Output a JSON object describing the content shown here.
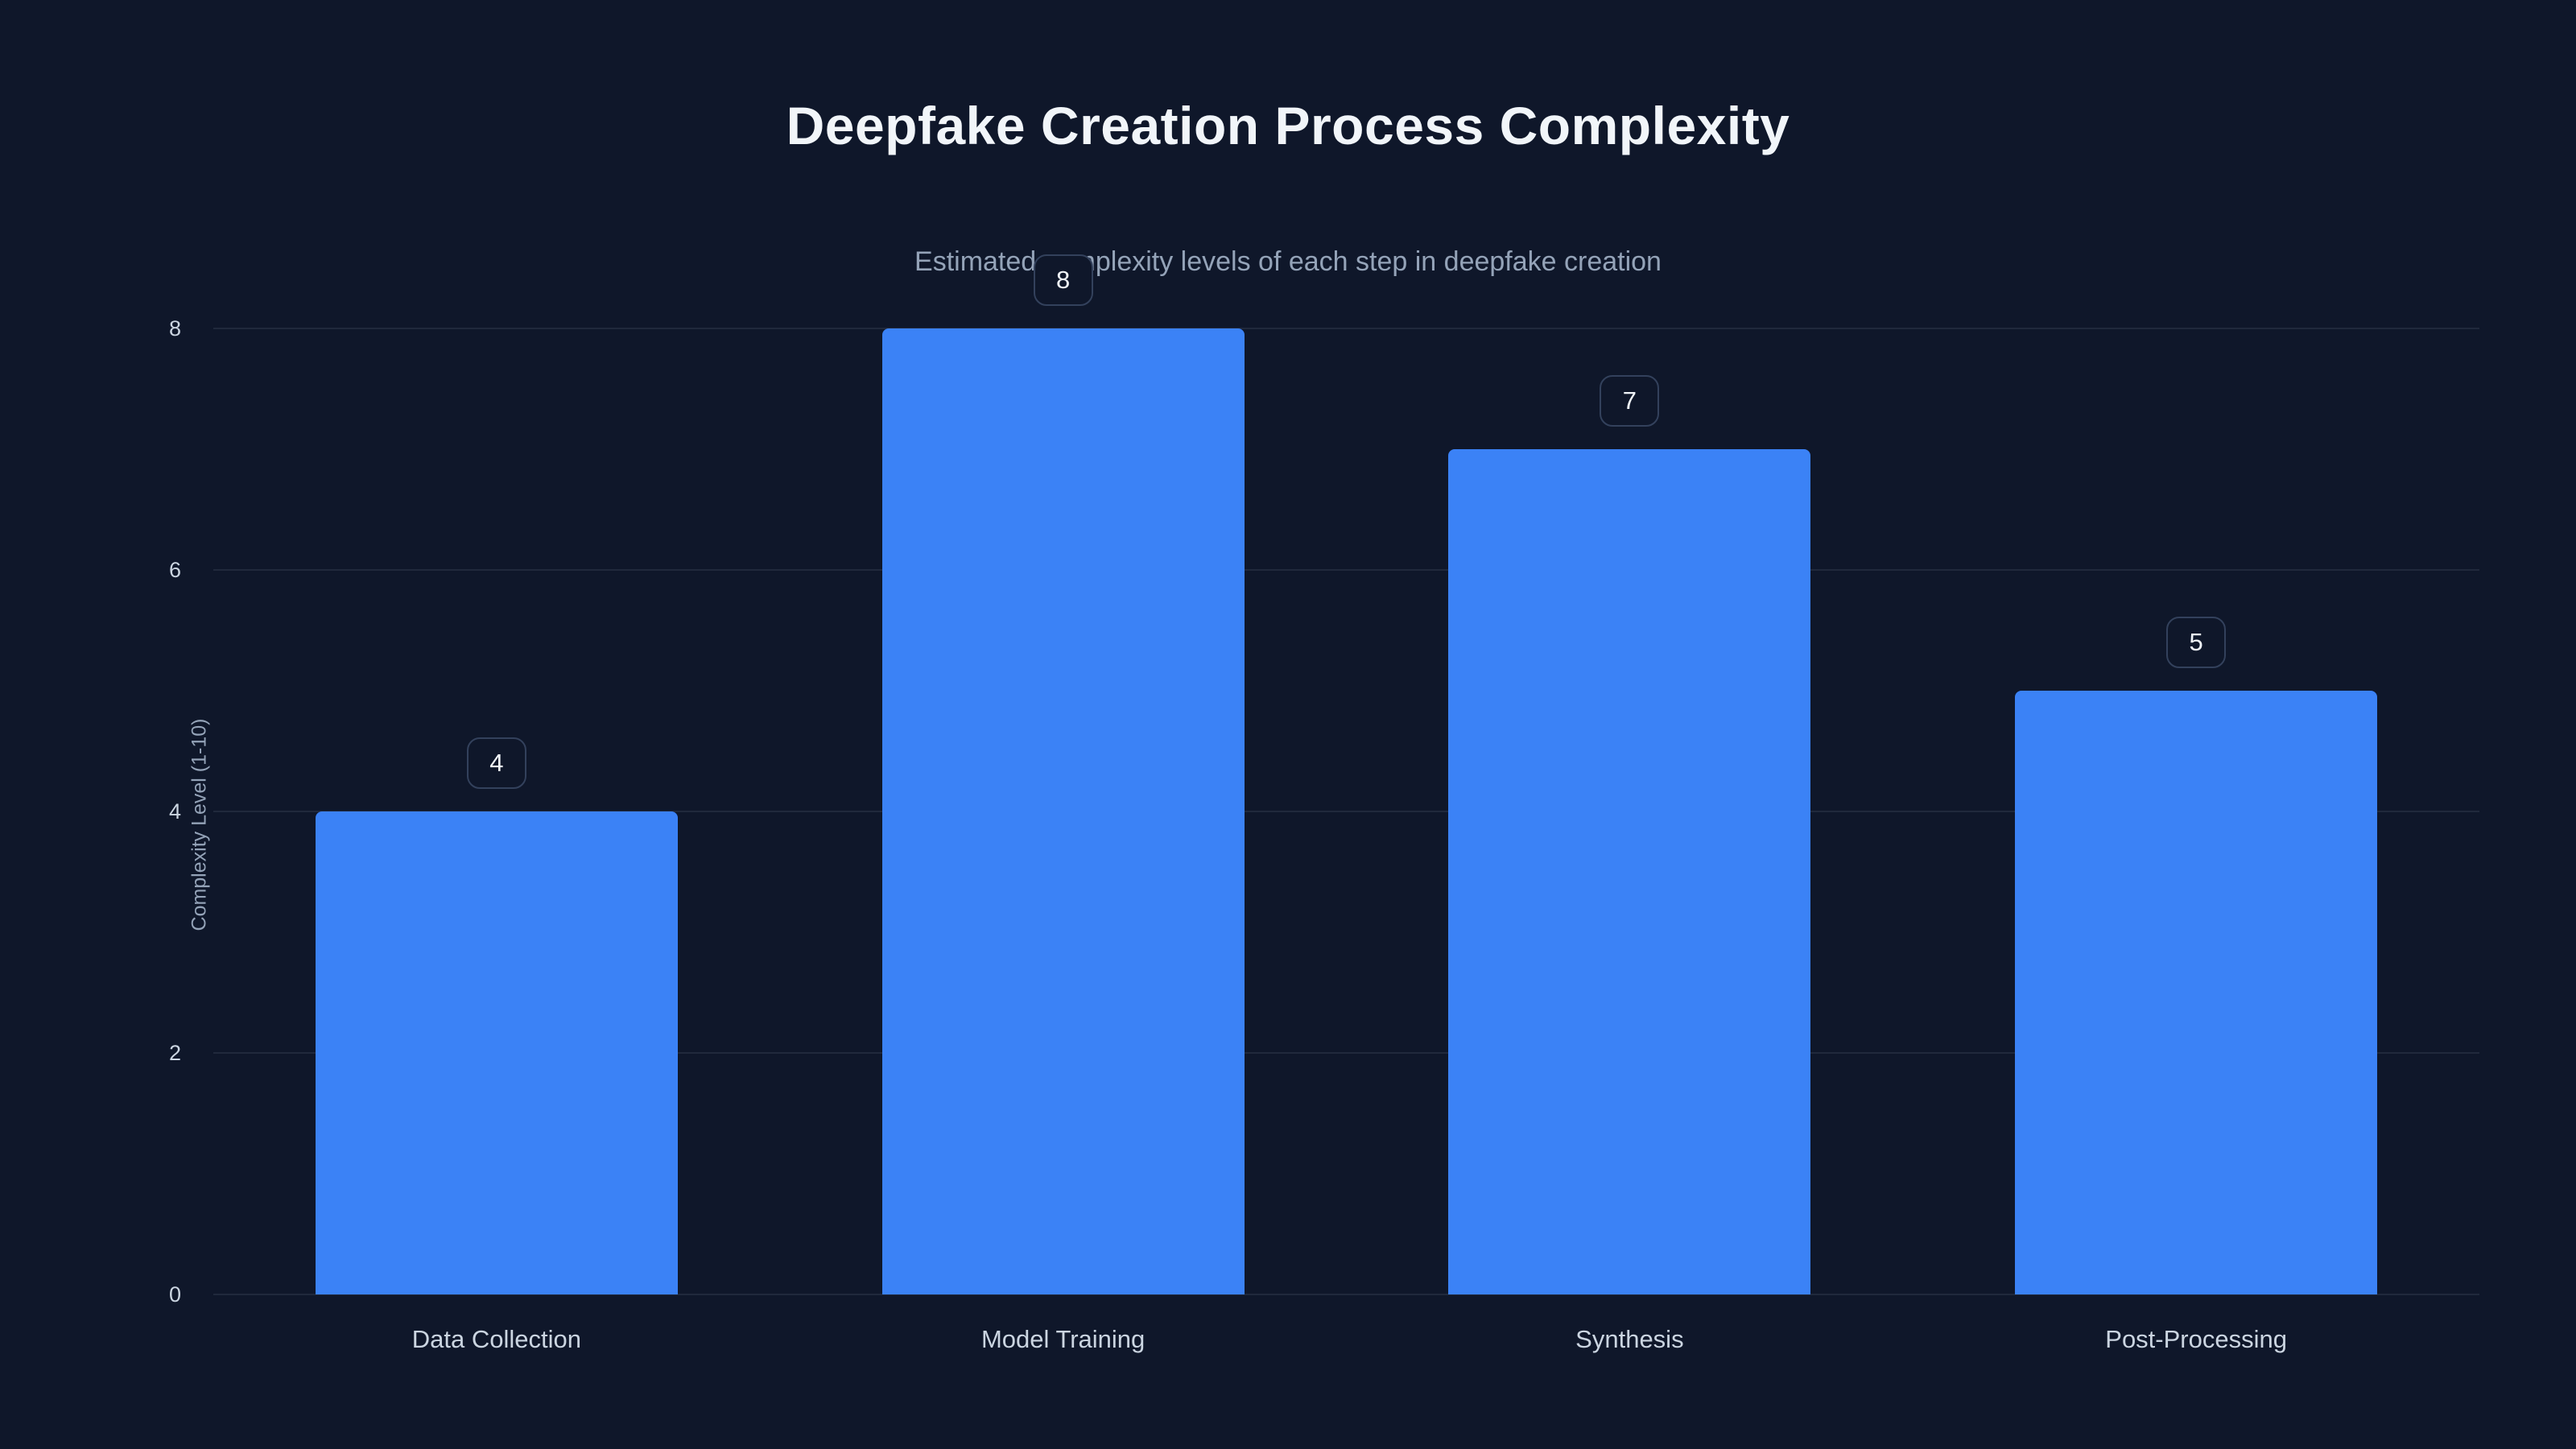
{
  "page": {
    "background_color": "#0f172a"
  },
  "chart_data": {
    "type": "bar",
    "title": "Deepfake Creation Process Complexity",
    "subtitle": "Estimated complexity levels of each step in deepfake creation",
    "categories": [
      "Data Collection",
      "Model Training",
      "Synthesis",
      "Post-Processing"
    ],
    "values": [
      4,
      8,
      7,
      5
    ],
    "value_labels": [
      "4",
      "8",
      "7",
      "5"
    ],
    "xlabel": "",
    "ylabel": "Complexity Level (1-10)",
    "ylim": [
      0,
      8
    ],
    "yticks": [
      0,
      2,
      4,
      6,
      8
    ],
    "grid": true,
    "legend": false,
    "bar_color": "#3b82f6",
    "text_color_title": "#f1f5f9",
    "text_color_muted": "#94a3b8"
  }
}
